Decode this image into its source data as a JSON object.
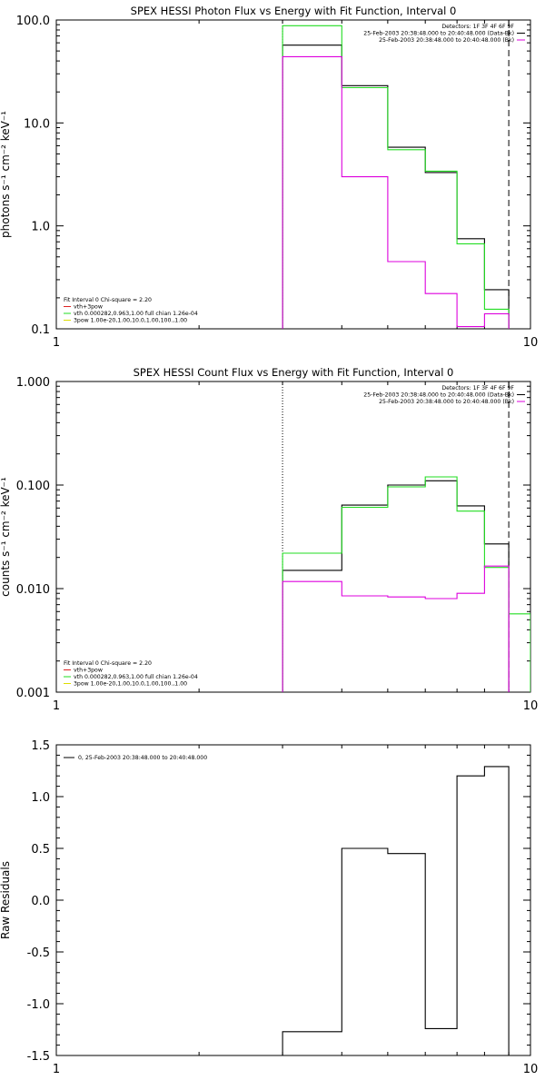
{
  "chart_data": [
    {
      "type": "line",
      "title": "SPEX HESSI Photon Flux vs Energy with Fit Function, Interval 0",
      "ylabel": "photons s⁻¹ cm⁻² keV⁻¹",
      "xlabel": "",
      "xscale": "log",
      "yscale": "log",
      "xlim": [
        1,
        10
      ],
      "ylim": [
        0.1,
        100
      ],
      "x_tick_labels": [
        "1",
        "10"
      ],
      "y_tick_labels": [
        "0.1",
        "1.0",
        "10.0",
        "100.0"
      ],
      "legend_right": [
        "Detectors: 1F 3F 4F 6F 9F",
        "25-Feb-2003 20:38:48.000 to 20:40:48.000 (Data-Bk)",
        "25-Feb-2003 20:38:48.000 to 20:40:48.000 (Bk)"
      ],
      "legend_left": [
        "Fit Interval 0   Chi-square = 2.20",
        "vth+3pow",
        "vth 0.000282,0.963,1.00  full chian 1.26e-04",
        "3pow 1.00e-20,1.00,10.0,1.00,100.,1.00"
      ],
      "vlines": [
        {
          "x": 3,
          "style": "dotted"
        },
        {
          "x": 9,
          "style": "dashed"
        }
      ],
      "series": [
        {
          "name": "25-Feb-2003 20:38:48.000 to 20:40:48.000 (Data-Bk)",
          "color": "#000000",
          "edges": [
            3,
            4,
            5,
            6,
            7,
            8,
            9
          ],
          "values": [
            57,
            23,
            5.8,
            3.3,
            0.75,
            0.24
          ]
        },
        {
          "name": "vth+3pow",
          "color": "#22dd22",
          "edges": [
            3,
            4,
            5,
            6,
            7,
            8,
            9
          ],
          "values": [
            88,
            22,
            5.5,
            3.4,
            0.67,
            0.155
          ]
        },
        {
          "name": "25-Feb-2003 20:38:48.000 to 20:40:48.000 (Bk)",
          "color": "#dd00dd",
          "edges": [
            3,
            4,
            5,
            6,
            7,
            8,
            9
          ],
          "values": [
            44,
            3.0,
            0.45,
            0.22,
            0.105,
            0.14
          ]
        }
      ]
    },
    {
      "type": "line",
      "title": "SPEX HESSI Count Flux vs Energy with Fit Function, Interval 0",
      "ylabel": "counts s⁻¹ cm⁻² keV⁻¹",
      "xlabel": "",
      "xscale": "log",
      "yscale": "log",
      "xlim": [
        1,
        10
      ],
      "ylim": [
        0.001,
        1
      ],
      "x_tick_labels": [
        "1",
        "10"
      ],
      "y_tick_labels": [
        "0.001",
        "0.010",
        "0.100",
        "1.000"
      ],
      "legend_right": [
        "Detectors: 1F 3F 4F 6F 9F",
        "25-Feb-2003 20:38:48.000 to 20:40:48.000 (Data-Bk)",
        "25-Feb-2003 20:38:48.000 to 20:40:48.000 (Bk)"
      ],
      "legend_left": [
        "Fit Interval 0   Chi-square = 2.20",
        "vth+3pow",
        "vth 0.000282,0.963,1.00  full chian 1.26e-04",
        "3pow 1.00e-20,1.00,10.0,1.00,100.,1.00"
      ],
      "vlines": [
        {
          "x": 3,
          "style": "dotted"
        },
        {
          "x": 9,
          "style": "dashed"
        }
      ],
      "series": [
        {
          "name": "25-Feb-2003 20:38:48.000 to 20:40:48.000 (Data-Bk)",
          "color": "#000000",
          "edges": [
            3,
            4,
            5,
            6,
            7,
            8,
            9
          ],
          "values": [
            0.015,
            0.064,
            0.1,
            0.11,
            0.063,
            0.027
          ]
        },
        {
          "name": "vth+3pow",
          "color": "#22dd22",
          "edges": [
            3,
            4,
            5,
            6,
            7,
            8,
            9,
            10
          ],
          "values": [
            0.022,
            0.061,
            0.096,
            0.12,
            0.056,
            0.016,
            0.0057
          ]
        },
        {
          "name": "25-Feb-2003 20:38:48.000 to 20:40:48.000 (Bk)",
          "color": "#dd00dd",
          "edges": [
            3,
            4,
            5,
            6,
            7,
            8,
            9
          ],
          "values": [
            0.0117,
            0.0085,
            0.0083,
            0.008,
            0.009,
            0.0165
          ]
        }
      ]
    },
    {
      "type": "line",
      "title": "",
      "ylabel": "Raw Residuals",
      "xlabel": "",
      "xscale": "log",
      "yscale": "linear",
      "xlim": [
        1,
        10
      ],
      "ylim": [
        -1.5,
        1.5
      ],
      "x_tick_labels": [
        "1",
        "10"
      ],
      "y_tick_labels": [
        "-1.5",
        "-1.0",
        "-0.5",
        "0.0",
        "0.5",
        "1.0",
        "1.5"
      ],
      "legend_left": [
        "0, 25-Feb-2003 20:38:48.000 to 20:40:48.000"
      ],
      "series": [
        {
          "name": "0, 25-Feb-2003 20:38:48.000 to 20:40:48.000",
          "color": "#000000",
          "edges": [
            3,
            4,
            5,
            6,
            7,
            8,
            9
          ],
          "values": [
            -1.27,
            0.5,
            0.45,
            -1.24,
            1.2,
            1.29
          ]
        }
      ]
    }
  ]
}
